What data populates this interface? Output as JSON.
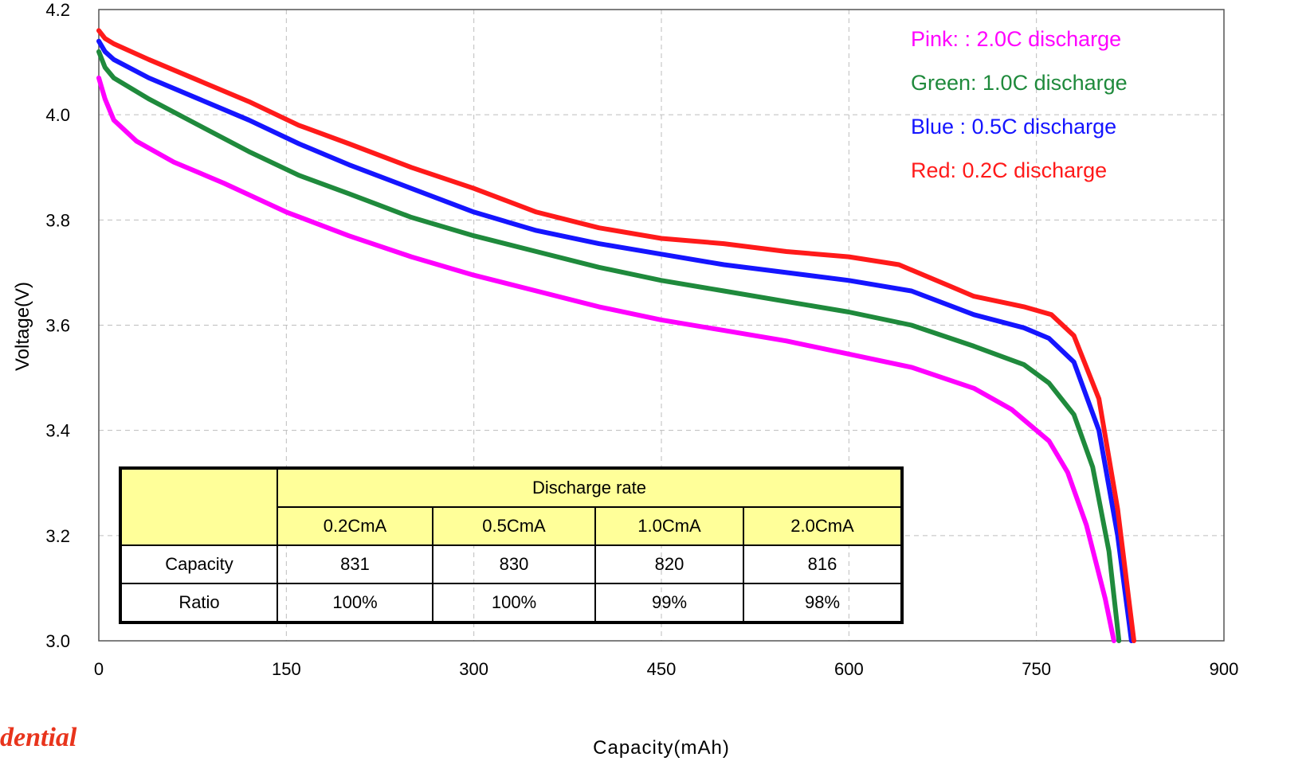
{
  "chart_data": {
    "type": "line",
    "xlabel": "Capacity(mAh)",
    "ylabel": "Voltage(V)",
    "xlim": [
      0,
      900
    ],
    "ylim": [
      3.0,
      4.2
    ],
    "xticks": [
      "0",
      "150",
      "300",
      "450",
      "600",
      "750",
      "900"
    ],
    "yticks": [
      "3.0",
      "3.2",
      "3.4",
      "3.6",
      "3.8",
      "4.0",
      "4.2"
    ],
    "grid": true,
    "legend_position": "top-right",
    "legend": [
      {
        "text": "Pink: : 2.0C discharge",
        "color": "#ff00ff"
      },
      {
        "text": "Green: 1.0C discharge",
        "color": "#1f8a3c"
      },
      {
        "text": "Blue : 0.5C discharge",
        "color": "#1515ff"
      },
      {
        "text": "Red: 0.2C discharge",
        "color": "#ff1a1a"
      }
    ],
    "series": [
      {
        "color": "#ff00ff",
        "x": [
          0,
          5,
          12,
          30,
          60,
          100,
          150,
          200,
          250,
          300,
          350,
          400,
          450,
          500,
          550,
          600,
          650,
          700,
          730,
          760,
          775,
          790,
          805,
          812
        ],
        "y": [
          4.07,
          4.03,
          3.99,
          3.95,
          3.91,
          3.87,
          3.815,
          3.77,
          3.73,
          3.695,
          3.665,
          3.635,
          3.61,
          3.59,
          3.57,
          3.545,
          3.52,
          3.48,
          3.44,
          3.38,
          3.32,
          3.22,
          3.08,
          3.0
        ]
      },
      {
        "color": "#1f8a3c",
        "x": [
          0,
          5,
          12,
          40,
          80,
          120,
          160,
          200,
          250,
          300,
          350,
          400,
          450,
          500,
          550,
          600,
          650,
          700,
          740,
          760,
          780,
          795,
          808,
          816
        ],
        "y": [
          4.12,
          4.09,
          4.07,
          4.03,
          3.98,
          3.93,
          3.885,
          3.85,
          3.805,
          3.77,
          3.74,
          3.71,
          3.685,
          3.665,
          3.645,
          3.625,
          3.6,
          3.56,
          3.525,
          3.49,
          3.43,
          3.33,
          3.17,
          3.0
        ]
      },
      {
        "color": "#1515ff",
        "x": [
          0,
          5,
          12,
          40,
          80,
          120,
          160,
          200,
          250,
          300,
          350,
          400,
          450,
          500,
          550,
          600,
          650,
          700,
          740,
          760,
          780,
          800,
          815,
          826
        ],
        "y": [
          4.14,
          4.12,
          4.105,
          4.07,
          4.03,
          3.99,
          3.945,
          3.905,
          3.86,
          3.815,
          3.78,
          3.755,
          3.735,
          3.715,
          3.7,
          3.685,
          3.665,
          3.62,
          3.595,
          3.575,
          3.53,
          3.4,
          3.2,
          3.0
        ]
      },
      {
        "color": "#ff1a1a",
        "x": [
          0,
          5,
          12,
          40,
          80,
          120,
          160,
          200,
          250,
          300,
          350,
          400,
          450,
          500,
          550,
          600,
          640,
          680,
          700,
          740,
          762,
          780,
          800,
          815,
          828
        ],
        "y": [
          4.16,
          4.145,
          4.135,
          4.105,
          4.065,
          4.025,
          3.98,
          3.945,
          3.9,
          3.86,
          3.815,
          3.785,
          3.765,
          3.755,
          3.74,
          3.73,
          3.715,
          3.675,
          3.655,
          3.635,
          3.62,
          3.58,
          3.46,
          3.25,
          3.0
        ]
      }
    ]
  },
  "table": {
    "header_group": "Discharge rate",
    "columns": [
      "0.2CmA",
      "0.5CmA",
      "1.0CmA",
      "2.0CmA"
    ],
    "rows": [
      {
        "label": "Capacity",
        "values": [
          "831",
          "830",
          "820",
          "816"
        ]
      },
      {
        "label": "Ratio",
        "values": [
          "100%",
          "100%",
          "99%",
          "98%"
        ]
      }
    ]
  },
  "watermark": "dential"
}
